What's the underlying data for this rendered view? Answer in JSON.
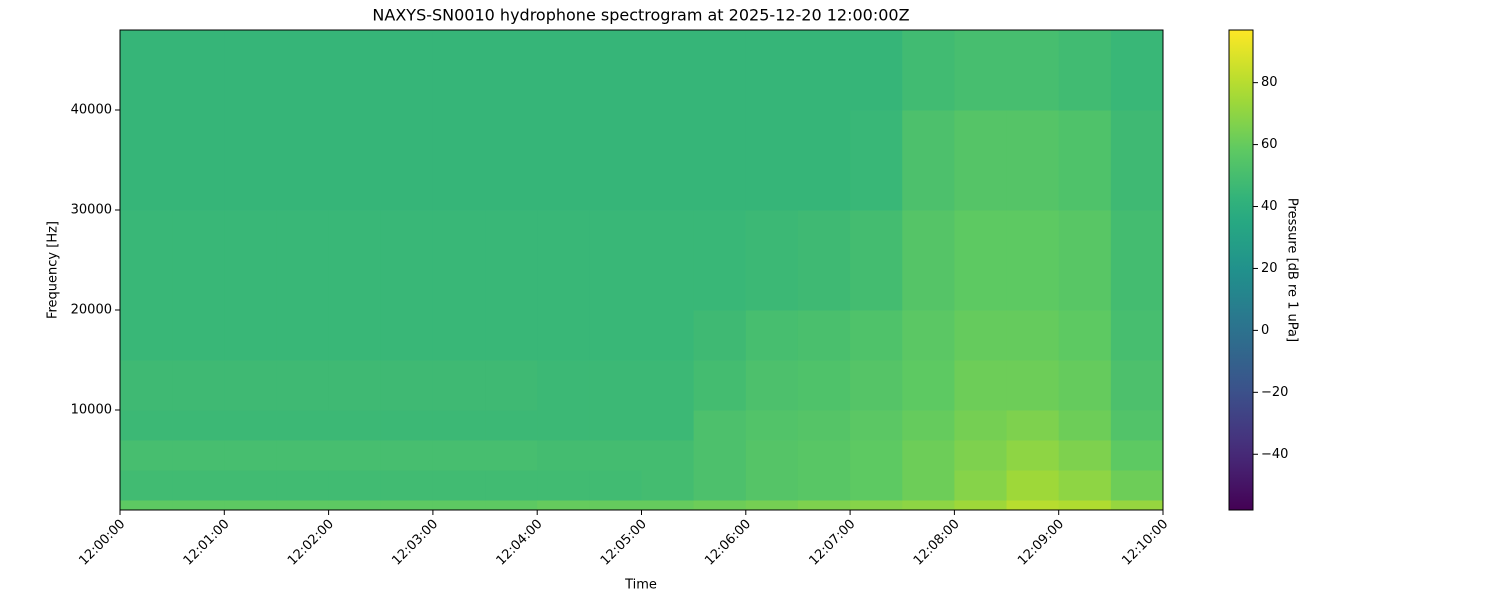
{
  "chart_data": {
    "type": "heatmap",
    "title": "NAXYS-SN0010 hydrophone spectrogram at 2025-12-20 12:00:00Z",
    "x_label": "Time",
    "y_label": "Frequency [Hz]",
    "colorbar_label": "Pressure [dB re 1 uPa]",
    "colormap": "viridis",
    "xlim": [
      "12:00:00",
      "12:10:00"
    ],
    "xticks": [
      "12:00:00",
      "12:01:00",
      "12:02:00",
      "12:03:00",
      "12:04:00",
      "12:05:00",
      "12:06:00",
      "12:07:00",
      "12:08:00",
      "12:09:00",
      "12:10:00"
    ],
    "ylim": [
      0,
      48000
    ],
    "yticks": [
      10000,
      20000,
      30000,
      40000
    ],
    "clim": [
      -58,
      97
    ],
    "cticks": [
      {
        "value": -40,
        "label": "−40"
      },
      {
        "value": -20,
        "label": "−20"
      },
      0,
      20,
      40,
      60,
      80
    ],
    "x_bins": [
      "12:00:00",
      "12:00:30",
      "12:01:00",
      "12:01:30",
      "12:02:00",
      "12:02:30",
      "12:03:00",
      "12:03:30",
      "12:04:00",
      "12:04:30",
      "12:05:00",
      "12:05:30",
      "12:06:00",
      "12:06:30",
      "12:07:00",
      "12:07:30",
      "12:08:00",
      "12:08:30",
      "12:09:00",
      "12:09:30",
      "12:10:00"
    ],
    "y_bins": [
      0,
      1000,
      4000,
      7000,
      10000,
      15000,
      20000,
      30000,
      40000,
      48000
    ],
    "z": [
      [
        58,
        58,
        58,
        58,
        58,
        58,
        58,
        58,
        60,
        60,
        60,
        62,
        64,
        66,
        68,
        70,
        74,
        80,
        78,
        72
      ],
      [
        48,
        48,
        48,
        48,
        48,
        48,
        48,
        48,
        48,
        48,
        49,
        52,
        55,
        56,
        58,
        62,
        68,
        74,
        70,
        62
      ],
      [
        50,
        50,
        50,
        50,
        50,
        50,
        50,
        50,
        49,
        49,
        49,
        52,
        55,
        56,
        58,
        62,
        66,
        70,
        66,
        58
      ],
      [
        46,
        46,
        46,
        46,
        46,
        46,
        46,
        46,
        46,
        46,
        46,
        52,
        54,
        55,
        57,
        60,
        64,
        66,
        62,
        54
      ],
      [
        47,
        47,
        47,
        47,
        47,
        47,
        47,
        47,
        46,
        46,
        46,
        49,
        52,
        53,
        55,
        58,
        62,
        62,
        60,
        52
      ],
      [
        45,
        45,
        45,
        45,
        45,
        45,
        45,
        45,
        45,
        45,
        45,
        47,
        50,
        51,
        53,
        57,
        60,
        60,
        58,
        50
      ],
      [
        45,
        45,
        45,
        45,
        45,
        45,
        45,
        45,
        45,
        45,
        45,
        45,
        46,
        47,
        49,
        55,
        58,
        58,
        56,
        49
      ],
      [
        44,
        44,
        44,
        44,
        44,
        44,
        44,
        44,
        44,
        44,
        44,
        44,
        44,
        44,
        45,
        52,
        55,
        55,
        53,
        47
      ],
      [
        44,
        44,
        44,
        44,
        44,
        44,
        44,
        44,
        44,
        44,
        44,
        44,
        44,
        44,
        44,
        48,
        50,
        50,
        48,
        45
      ]
    ]
  }
}
